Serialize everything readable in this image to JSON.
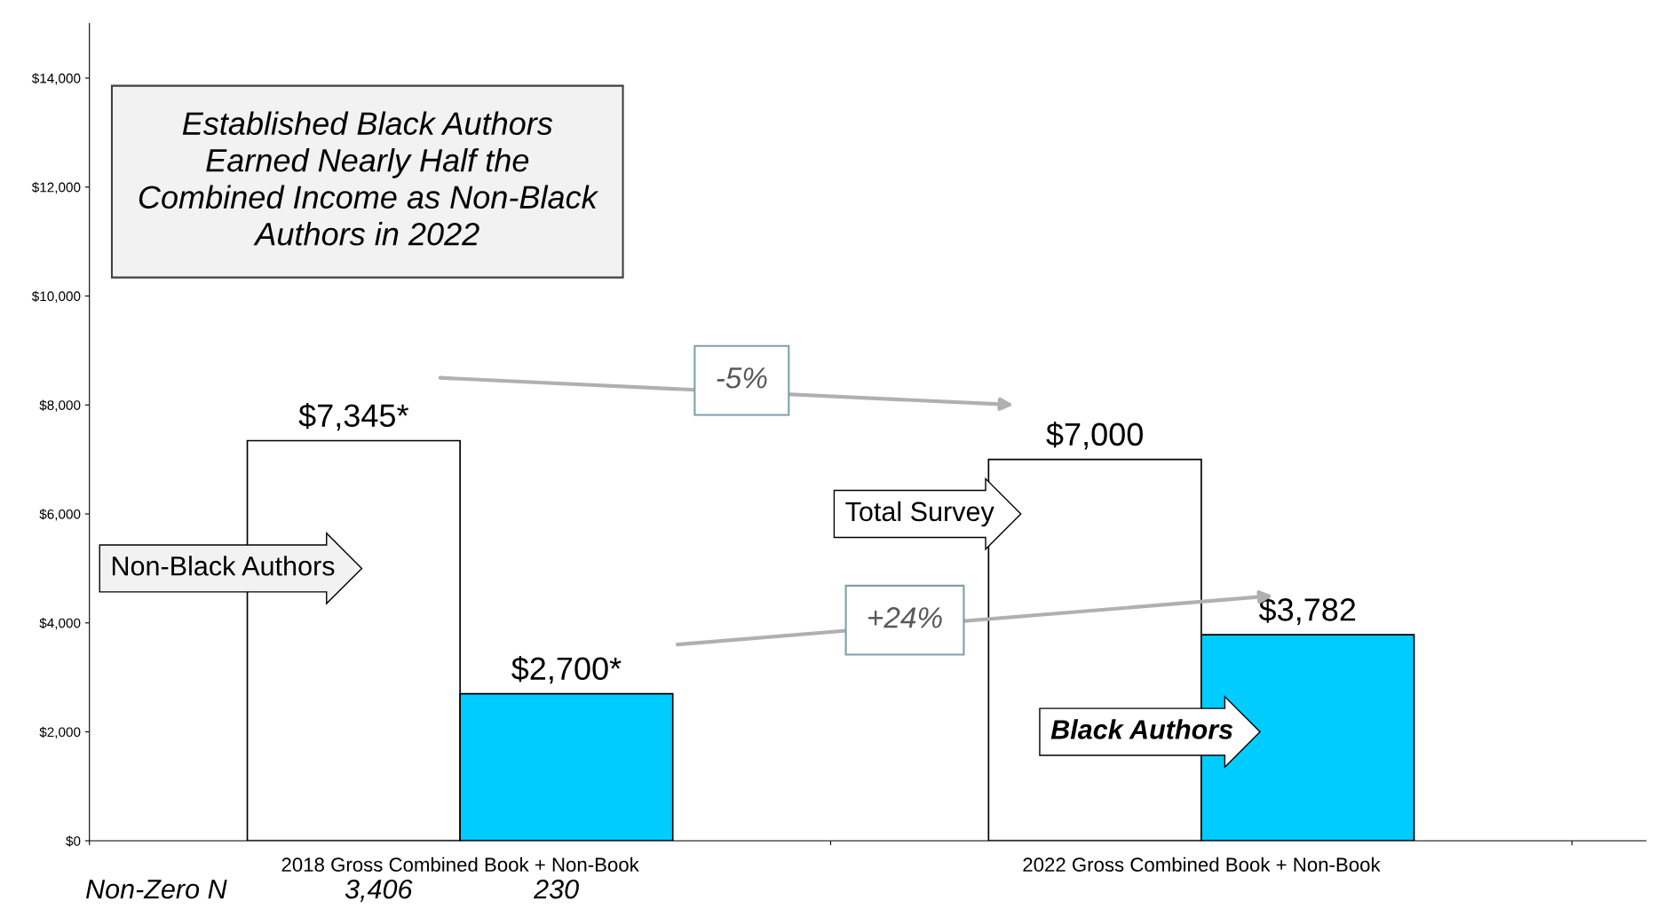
{
  "chart_data": {
    "type": "bar",
    "title": "Established Black Authors Earned Nearly Half the Combined Income as Non-Black Authors in 2022",
    "categories": [
      "2018 Gross Combined Book + Non-Book",
      "2022 Gross Combined Book + Non-Book"
    ],
    "series": [
      {
        "color": "#ffffff",
        "values": [
          7345,
          7000
        ],
        "value_labels": [
          "$7,345*",
          "$7,000"
        ]
      },
      {
        "color": "#00ccff",
        "values": [
          2700,
          3782
        ],
        "value_labels": [
          "$2,700*",
          "$3,782"
        ]
      }
    ],
    "ylim": [
      0,
      15000
    ],
    "yticks": [
      {
        "value": 0,
        "label": "$0"
      },
      {
        "value": 2000,
        "label": "$2,000"
      },
      {
        "value": 4000,
        "label": "$4,000"
      },
      {
        "value": 6000,
        "label": "$6,000"
      },
      {
        "value": 8000,
        "label": "$8,000"
      },
      {
        "value": 10000,
        "label": "$10,000"
      },
      {
        "value": 12000,
        "label": "$12,000"
      },
      {
        "value": 14000,
        "label": "$14,000"
      }
    ],
    "grid": false,
    "legend": false,
    "annotations": [
      "Non-Black Authors",
      "Total Survey",
      "Black Authors",
      "-5%",
      "+24%",
      "Non-Zero N",
      "3,406",
      "230"
    ]
  }
}
